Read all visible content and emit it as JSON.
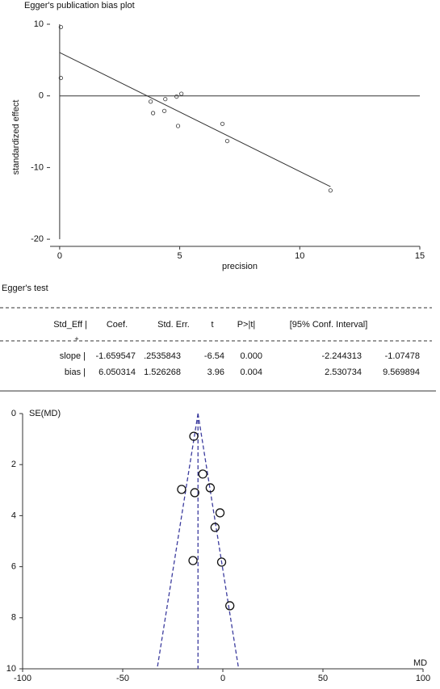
{
  "chart_data": [
    {
      "type": "scatter",
      "title": "Egger's publication bias plot",
      "x_label": "precision",
      "y_label": "standardized effect",
      "xlim": [
        -0.4,
        15
      ],
      "ylim": [
        -21,
        10
      ],
      "xticks": [
        0,
        5,
        10,
        15
      ],
      "yticks": [
        -20,
        -10,
        0,
        10
      ],
      "x": [
        0.05,
        0.05,
        3.79,
        3.89,
        4.4,
        4.36,
        4.87,
        5.07,
        4.93,
        6.78,
        6.98,
        11.28
      ],
      "values": [
        9.6,
        2.5,
        -0.8,
        -2.4,
        -0.45,
        -2.1,
        -0.1,
        0.3,
        -4.2,
        -3.9,
        -6.3,
        -13.2
      ],
      "lines": [
        {
          "x": [
            0,
            11.28
          ],
          "values": [
            6.05,
            -12.67
          ]
        },
        {
          "x": [
            0,
            0
          ],
          "values": [
            10,
            -20
          ]
        }
      ],
      "hline": 0,
      "color": "#333333"
    },
    {
      "type": "funnel",
      "x_label": "MD",
      "y_label": "SE(MD)",
      "xlim": [
        -100,
        100
      ],
      "ylim": [
        0,
        10
      ],
      "y_inverted": true,
      "xticks": [
        -100,
        -50,
        0,
        50,
        100
      ],
      "yticks": [
        0,
        2,
        4,
        6,
        8,
        10
      ],
      "x": [
        -14.5,
        -10.0,
        -20.6,
        -14.0,
        -6.3,
        -1.4,
        -3.9,
        -14.9,
        -0.6,
        3.5
      ],
      "values": [
        0.89,
        2.37,
        2.97,
        3.1,
        2.91,
        3.89,
        4.46,
        5.76,
        5.82,
        7.53
      ],
      "lines": [
        {
          "x": [
            -12.4,
            -12.4
          ],
          "values": [
            0,
            10
          ]
        },
        {
          "x": [
            -12.4,
            -32.8
          ],
          "values": [
            0,
            10
          ]
        },
        {
          "x": [
            -12.4,
            7.9
          ],
          "values": [
            0,
            10
          ]
        }
      ],
      "color": "#111111",
      "line_color": "#3c3c9e"
    }
  ],
  "table": {
    "title": "Egger's test",
    "divider": "+",
    "header": [
      "Std_Eff |",
      "Coef.",
      "Std. Err.",
      "t",
      "P>|t|",
      "[95% Conf. Interval]"
    ],
    "rows": [
      [
        "slope |",
        "-1.659547",
        ".2535843",
        "-6.54",
        "0.000",
        "-2.244313",
        "-1.07478"
      ],
      [
        "bias |",
        "6.050314",
        "1.526268",
        "3.96",
        "0.004",
        "2.530734",
        "9.569894"
      ]
    ]
  }
}
